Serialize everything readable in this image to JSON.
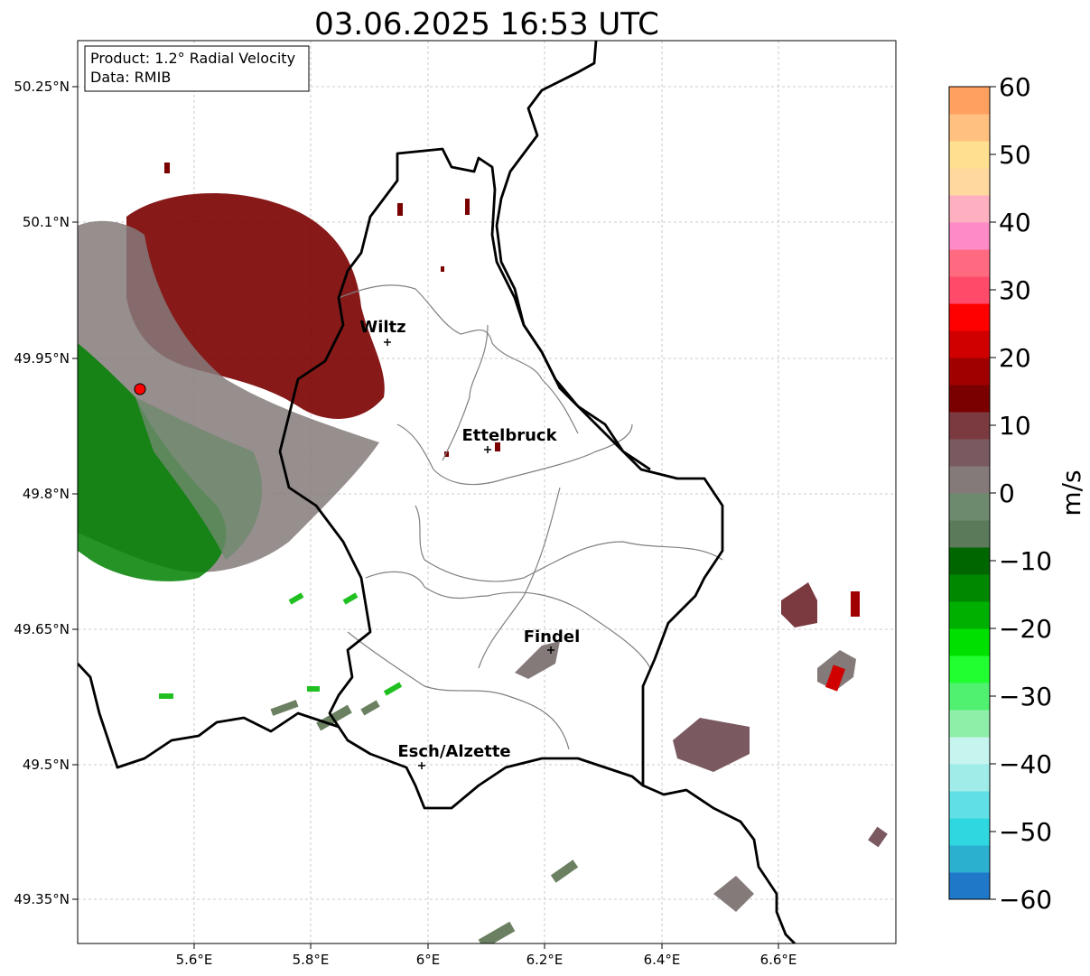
{
  "title": "03.06.2025 16:53 UTC",
  "info": {
    "line1": "Product: 1.2° Radial Velocity",
    "line2": "Data: RMIB"
  },
  "axes": {
    "lat_ticks": [
      "50.25°N",
      "50.1°N",
      "49.95°N",
      "49.8°N",
      "49.65°N",
      "49.5°N",
      "49.35°N"
    ],
    "lon_ticks": [
      "5.6°E",
      "5.8°E",
      "6°E",
      "6.2°E",
      "6.4°E",
      "6.6°E"
    ]
  },
  "cities": [
    {
      "name": "Wiltz"
    },
    {
      "name": "Ettelbruck"
    },
    {
      "name": "Findel"
    },
    {
      "name": "Esch/Alzette"
    }
  ],
  "colorbar": {
    "label": "m/s",
    "ticks": [
      "60",
      "50",
      "40",
      "30",
      "20",
      "10",
      "0",
      "−10",
      "−20",
      "−30",
      "−40",
      "−50",
      "−60"
    ],
    "min": -60,
    "max": 60,
    "stops": [
      "#1f78c8",
      "#2bb0d0",
      "#2fd8e0",
      "#60e0e6",
      "#a0ece8",
      "#c6f4ee",
      "#8ef0a8",
      "#50f070",
      "#20ff30",
      "#00e000",
      "#00b000",
      "#008800",
      "#006600",
      "#5a7a5a",
      "#6e8a6e",
      "#857a7a",
      "#7a5a60",
      "#7a3a40",
      "#7a0000",
      "#a00000",
      "#d00000",
      "#ff0000",
      "#ff4a6a",
      "#ff6a80",
      "#ff8ac8",
      "#ffb0c0",
      "#ffd8a0",
      "#ffe090",
      "#ffc080",
      "#ffa060"
    ]
  },
  "colors": {
    "border": "#000000",
    "cantons": "#808080",
    "grid": "#bbbbbb",
    "inbound": "#008000",
    "outbound": "#7a0000",
    "radar_site": "#ff0000"
  }
}
